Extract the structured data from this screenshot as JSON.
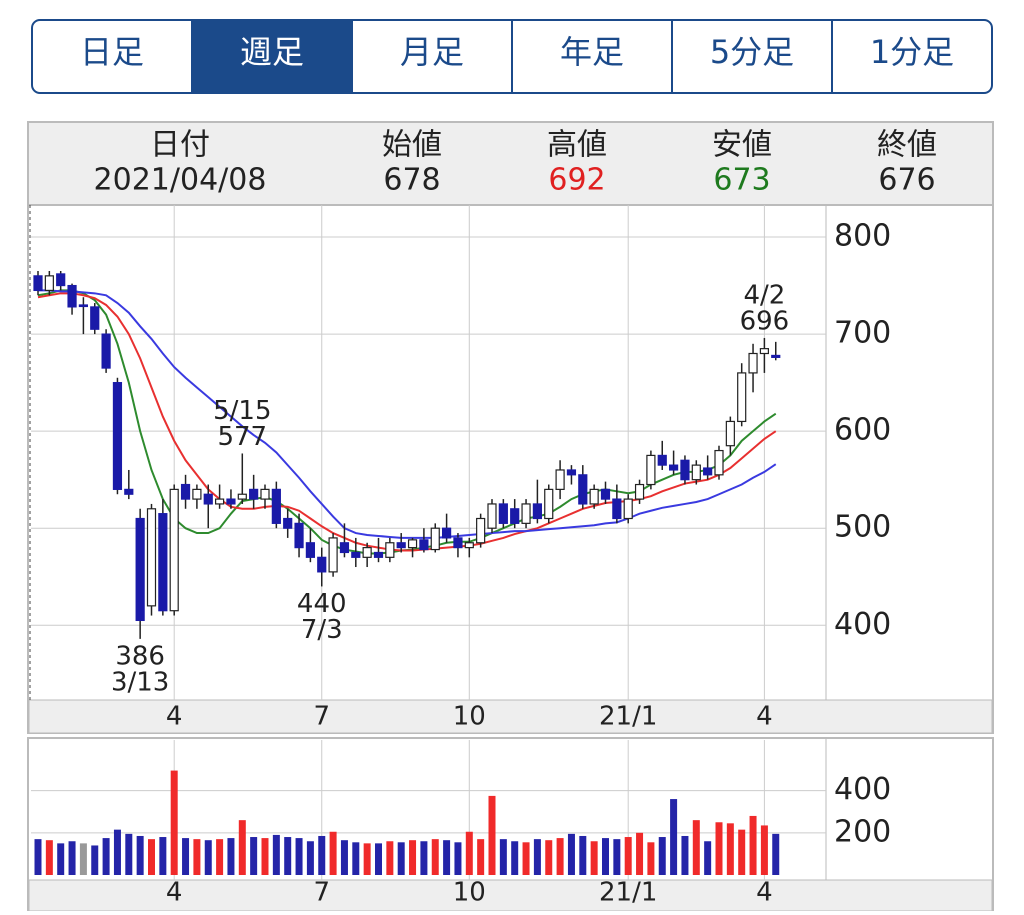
{
  "tabs": {
    "items": [
      "日足",
      "週足",
      "月足",
      "年足",
      "5分足",
      "1分足"
    ],
    "active": 1
  },
  "ohlc_header": {
    "labels": [
      "日付",
      "始値",
      "高値",
      "安値",
      "終値"
    ],
    "values": [
      "2021/04/08",
      678,
      692,
      673,
      676
    ],
    "colors": [
      "#222222",
      "#222222",
      "#e02020",
      "#1e7a1e",
      "#222222"
    ]
  },
  "chart_data": [
    {
      "type": "candlestick",
      "categories": [
        null,
        null,
        null,
        null,
        null,
        null,
        null,
        null,
        null,
        null,
        null,
        null,
        "4",
        null,
        null,
        null,
        null,
        null,
        null,
        null,
        null,
        null,
        null,
        null,
        null,
        "7",
        null,
        null,
        null,
        null,
        null,
        null,
        null,
        null,
        null,
        null,
        null,
        null,
        "10",
        null,
        null,
        null,
        null,
        null,
        null,
        null,
        null,
        null,
        null,
        null,
        null,
        null,
        "21/1",
        null,
        null,
        null,
        null,
        null,
        null,
        null,
        null,
        null,
        null,
        null,
        "4",
        null
      ],
      "open": [
        760,
        745,
        762,
        750,
        730,
        728,
        700,
        650,
        540,
        510,
        420,
        515,
        415,
        545,
        530,
        535,
        525,
        530,
        530,
        540,
        530,
        540,
        510,
        505,
        485,
        470,
        455,
        485,
        475,
        470,
        475,
        470,
        485,
        480,
        488,
        478,
        500,
        490,
        480,
        485,
        500,
        525,
        520,
        505,
        525,
        510,
        540,
        560,
        555,
        525,
        540,
        530,
        510,
        530,
        545,
        575,
        565,
        570,
        550,
        562,
        555,
        585,
        610,
        660,
        680,
        678
      ],
      "high": [
        765,
        765,
        765,
        752,
        738,
        732,
        705,
        655,
        560,
        520,
        525,
        530,
        545,
        555,
        545,
        545,
        545,
        540,
        577,
        555,
        545,
        548,
        520,
        515,
        500,
        480,
        495,
        505,
        490,
        485,
        490,
        490,
        495,
        490,
        500,
        505,
        515,
        495,
        490,
        515,
        530,
        530,
        530,
        530,
        550,
        545,
        570,
        565,
        565,
        545,
        548,
        545,
        535,
        550,
        580,
        590,
        580,
        575,
        570,
        575,
        585,
        615,
        670,
        690,
        696,
        692
      ],
      "low": [
        740,
        740,
        745,
        720,
        700,
        700,
        660,
        535,
        530,
        386,
        410,
        410,
        410,
        520,
        520,
        500,
        520,
        520,
        525,
        520,
        520,
        500,
        490,
        470,
        465,
        440,
        450,
        470,
        460,
        460,
        465,
        465,
        475,
        470,
        475,
        475,
        485,
        470,
        470,
        480,
        495,
        500,
        500,
        500,
        505,
        505,
        530,
        545,
        520,
        520,
        525,
        505,
        505,
        525,
        540,
        560,
        555,
        545,
        545,
        550,
        550,
        575,
        605,
        640,
        660,
        673
      ],
      "close": [
        745,
        760,
        750,
        728,
        730,
        705,
        665,
        540,
        535,
        405,
        520,
        415,
        540,
        530,
        540,
        525,
        530,
        525,
        535,
        530,
        540,
        505,
        500,
        480,
        470,
        455,
        490,
        475,
        470,
        480,
        470,
        485,
        480,
        488,
        478,
        500,
        490,
        480,
        485,
        510,
        525,
        505,
        505,
        525,
        510,
        540,
        560,
        555,
        525,
        540,
        530,
        510,
        530,
        545,
        575,
        565,
        560,
        550,
        565,
        555,
        580,
        610,
        660,
        680,
        685,
        676
      ],
      "up_color": "#ffffff",
      "down_color": "#1a1aa8",
      "moving_averages": [
        {
          "color": "#2e8b2e",
          "values": [
            740,
            742,
            745,
            745,
            742,
            735,
            720,
            690,
            650,
            600,
            560,
            530,
            510,
            500,
            495,
            495,
            500,
            515,
            528,
            530,
            532,
            528,
            520,
            510,
            500,
            488,
            482,
            478,
            476,
            474,
            474,
            475,
            477,
            478,
            480,
            482,
            485,
            486,
            486,
            490,
            495,
            500,
            505,
            510,
            512,
            515,
            522,
            530,
            535,
            538,
            540,
            538,
            536,
            538,
            545,
            550,
            555,
            558,
            558,
            560,
            565,
            575,
            590,
            600,
            610,
            618
          ]
        },
        {
          "color": "#e83030",
          "values": [
            738,
            740,
            742,
            742,
            740,
            737,
            730,
            718,
            700,
            675,
            645,
            615,
            590,
            570,
            555,
            540,
            530,
            522,
            520,
            520,
            522,
            523,
            522,
            518,
            510,
            502,
            495,
            490,
            485,
            482,
            480,
            478,
            477,
            477,
            478,
            479,
            480,
            481,
            482,
            484,
            487,
            490,
            494,
            497,
            500,
            505,
            510,
            515,
            520,
            523,
            526,
            527,
            528,
            530,
            533,
            538,
            542,
            546,
            548,
            550,
            555,
            562,
            572,
            582,
            592,
            600
          ]
        },
        {
          "color": "#3a3ae0",
          "values": [
            745,
            745,
            744,
            744,
            743,
            742,
            740,
            732,
            722,
            708,
            695,
            680,
            666,
            655,
            645,
            635,
            625,
            615,
            605,
            596,
            588,
            578,
            565,
            552,
            538,
            525,
            512,
            500,
            495,
            493,
            492,
            491,
            490,
            490,
            490,
            490,
            491,
            492,
            493,
            494,
            495,
            496,
            497,
            497,
            498,
            499,
            500,
            501,
            502,
            503,
            505,
            506,
            510,
            515,
            518,
            521,
            523,
            525,
            527,
            530,
            535,
            540,
            545,
            552,
            558,
            566
          ]
        }
      ],
      "annotations": [
        {
          "date": "4/2",
          "value": 696
        },
        {
          "date": "5/15",
          "value": 577
        },
        {
          "date": "7/3",
          "value": 440
        },
        {
          "date": "3/13",
          "value": 386
        }
      ],
      "ylim": [
        323,
        833
      ],
      "yticks": [
        400,
        500,
        600,
        700,
        800
      ],
      "grid": true
    },
    {
      "type": "bar",
      "values": [
        170,
        165,
        150,
        160,
        150,
        140,
        175,
        215,
        195,
        185,
        170,
        180,
        495,
        175,
        170,
        165,
        170,
        175,
        260,
        180,
        175,
        190,
        180,
        175,
        160,
        185,
        205,
        165,
        155,
        150,
        150,
        160,
        155,
        165,
        160,
        170,
        165,
        155,
        205,
        170,
        375,
        170,
        160,
        155,
        170,
        165,
        175,
        195,
        185,
        160,
        175,
        170,
        180,
        200,
        155,
        180,
        360,
        185,
        260,
        160,
        250,
        245,
        215,
        280,
        235,
        195
      ],
      "up_color": "#f02a2a",
      "down_color": "#2424a8",
      "flat_color": "#999999",
      "ylim": [
        0,
        640
      ],
      "yticks": [
        200,
        400
      ],
      "grid": true
    }
  ]
}
